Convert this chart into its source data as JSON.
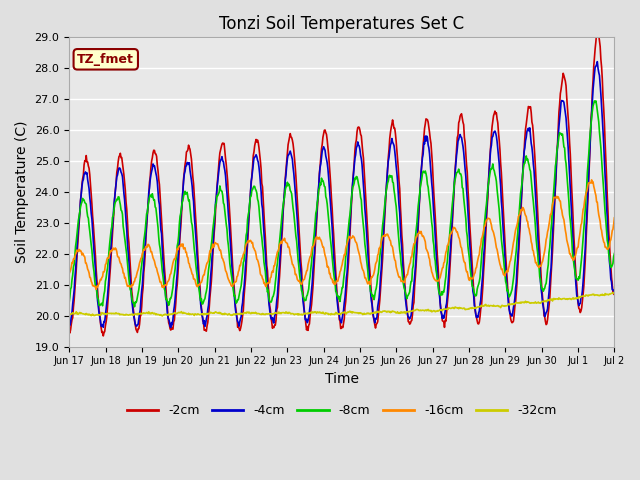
{
  "title": "Tonzi Soil Temperatures Set C",
  "xlabel": "Time",
  "ylabel": "Soil Temperature (C)",
  "ylim": [
    19.0,
    29.0
  ],
  "yticks": [
    19.0,
    20.0,
    21.0,
    22.0,
    23.0,
    24.0,
    25.0,
    26.0,
    27.0,
    28.0,
    29.0
  ],
  "bg_color": "#e0e0e0",
  "plot_bg_color": "#e8e8e8",
  "grid_color": "#ffffff",
  "label_box_text": "TZ_fmet",
  "label_box_bg": "#ffffcc",
  "label_box_edge": "#8b0000",
  "label_box_text_color": "#8b0000",
  "series": [
    {
      "label": "-2cm",
      "color": "#cc0000",
      "lw": 1.2
    },
    {
      "label": "-4cm",
      "color": "#0000cc",
      "lw": 1.2
    },
    {
      "label": "-8cm",
      "color": "#00cc00",
      "lw": 1.2
    },
    {
      "label": "-16cm",
      "color": "#ff8800",
      "lw": 1.2
    },
    {
      "label": "-32cm",
      "color": "#cccc00",
      "lw": 1.2
    }
  ],
  "xtick_labels": [
    "Jun 17",
    "Jun 18",
    "Jun 19",
    "Jun 20",
    "Jun 21",
    "Jun 22",
    "Jun 23",
    "Jun 24",
    "Jun 25",
    "Jun 26",
    "Jun 27",
    "Jun 28",
    "Jun 29",
    "Jun 30",
    "Jul 1",
    "Jul 2"
  ],
  "legend_ncol": 5,
  "title_fontsize": 12,
  "axis_label_fontsize": 10,
  "tick_fontsize": 8
}
